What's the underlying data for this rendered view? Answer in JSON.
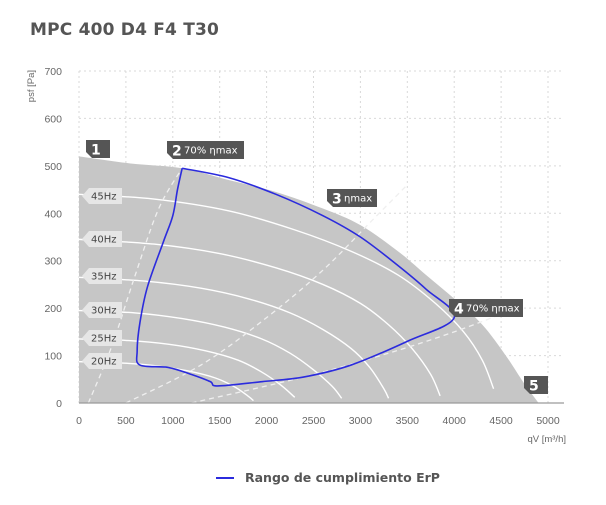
{
  "title": "MPC 400 D4 F4 T30",
  "colors": {
    "background": "#ffffff",
    "region_fill": "#c6c6c6",
    "grid": "#d9d9d9",
    "curves": "#ffffff",
    "erp_line": "#2b2bdd",
    "tags": "#555555",
    "hz_label_bg": "#e6e6e6"
  },
  "chart_data": {
    "type": "line",
    "xlabel": "qV [m³/h]",
    "ylabel": "psf [Pa]",
    "xlim": [
      0,
      5000
    ],
    "ylim": [
      0,
      700
    ],
    "x_ticks": [
      "0",
      "500",
      "1000",
      "1500",
      "2000",
      "2500",
      "3000",
      "3500",
      "4000",
      "4500",
      "5000"
    ],
    "y_ticks": [
      "0",
      "100",
      "200",
      "300",
      "400",
      "500",
      "600",
      "700"
    ],
    "grid": true,
    "legend_position": "bottom",
    "legend": [
      {
        "label": "Rango de cumplimiento ErP",
        "color": "#2b2bdd"
      }
    ],
    "operating_region": [
      [
        0,
        520
      ],
      [
        550,
        505
      ],
      [
        1100,
        495
      ],
      [
        1600,
        470
      ],
      [
        2100,
        445
      ],
      [
        2600,
        410
      ],
      [
        3000,
        375
      ],
      [
        3400,
        320
      ],
      [
        3700,
        270
      ],
      [
        4000,
        220
      ],
      [
        4300,
        165
      ],
      [
        4550,
        100
      ],
      [
        4750,
        40
      ],
      [
        4900,
        0
      ],
      [
        0,
        0
      ]
    ],
    "frequency_curves": [
      {
        "label": "45Hz",
        "points": [
          [
            0,
            440
          ],
          [
            800,
            430
          ],
          [
            1600,
            405
          ],
          [
            2300,
            365
          ],
          [
            2900,
            320
          ],
          [
            3400,
            270
          ],
          [
            3800,
            210
          ],
          [
            4100,
            150
          ],
          [
            4300,
            90
          ],
          [
            4420,
            30
          ]
        ]
      },
      {
        "label": "40Hz",
        "points": [
          [
            0,
            345
          ],
          [
            800,
            335
          ],
          [
            1500,
            315
          ],
          [
            2100,
            285
          ],
          [
            2600,
            250
          ],
          [
            3000,
            210
          ],
          [
            3300,
            165
          ],
          [
            3550,
            115
          ],
          [
            3750,
            60
          ],
          [
            3850,
            15
          ]
        ]
      },
      {
        "label": "35Hz",
        "points": [
          [
            0,
            265
          ],
          [
            700,
            257
          ],
          [
            1300,
            242
          ],
          [
            1800,
            220
          ],
          [
            2250,
            190
          ],
          [
            2600,
            155
          ],
          [
            2900,
            115
          ],
          [
            3100,
            75
          ],
          [
            3250,
            30
          ],
          [
            3300,
            10
          ]
        ]
      },
      {
        "label": "30Hz",
        "points": [
          [
            0,
            195
          ],
          [
            600,
            190
          ],
          [
            1100,
            178
          ],
          [
            1550,
            160
          ],
          [
            1950,
            135
          ],
          [
            2250,
            105
          ],
          [
            2500,
            70
          ],
          [
            2700,
            35
          ],
          [
            2800,
            10
          ]
        ]
      },
      {
        "label": "25Hz",
        "points": [
          [
            0,
            135
          ],
          [
            500,
            132
          ],
          [
            950,
            124
          ],
          [
            1350,
            110
          ],
          [
            1700,
            90
          ],
          [
            1950,
            65
          ],
          [
            2150,
            38
          ],
          [
            2300,
            12
          ]
        ]
      },
      {
        "label": "20Hz",
        "points": [
          [
            0,
            87
          ],
          [
            400,
            85
          ],
          [
            800,
            79
          ],
          [
            1150,
            68
          ],
          [
            1450,
            53
          ],
          [
            1650,
            35
          ],
          [
            1800,
            15
          ],
          [
            1860,
            5
          ]
        ]
      }
    ],
    "efficiency_lines": [
      {
        "label": "70% ηmax",
        "points": [
          [
            100,
            0
          ],
          [
            350,
            120
          ],
          [
            600,
            270
          ],
          [
            850,
            410
          ],
          [
            1100,
            495
          ]
        ]
      },
      {
        "label": "ηmax",
        "points": [
          [
            500,
            0
          ],
          [
            1300,
            80
          ],
          [
            2000,
            180
          ],
          [
            2600,
            280
          ],
          [
            3100,
            380
          ],
          [
            3500,
            460
          ]
        ]
      },
      {
        "label": "70% ηmax",
        "points": [
          [
            1200,
            0
          ],
          [
            2400,
            55
          ],
          [
            3300,
            105
          ],
          [
            4000,
            150
          ],
          [
            4600,
            195
          ]
        ]
      }
    ],
    "erp_compliance_range": {
      "name": "Rango de cumplimiento ErP",
      "points": [
        [
          1100,
          495
        ],
        [
          1600,
          475
        ],
        [
          2100,
          440
        ],
        [
          2600,
          395
        ],
        [
          3000,
          350
        ],
        [
          3400,
          290
        ],
        [
          3700,
          240
        ],
        [
          4000,
          180
        ],
        [
          3500,
          130
        ],
        [
          2900,
          80
        ],
        [
          2400,
          55
        ],
        [
          1950,
          45
        ],
        [
          1480,
          36
        ],
        [
          1400,
          45
        ],
        [
          1200,
          60
        ],
        [
          950,
          75
        ],
        [
          650,
          80
        ],
        [
          620,
          110
        ],
        [
          650,
          170
        ],
        [
          730,
          245
        ],
        [
          900,
          340
        ],
        [
          1000,
          395
        ],
        [
          1050,
          450
        ],
        [
          1100,
          495
        ]
      ]
    },
    "tags": [
      {
        "num": "1",
        "text": ""
      },
      {
        "num": "2",
        "text": "70% ηmax"
      },
      {
        "num": "3",
        "text": "ηmax"
      },
      {
        "num": "4",
        "text": "70% ηmax"
      },
      {
        "num": "5",
        "text": ""
      }
    ]
  }
}
